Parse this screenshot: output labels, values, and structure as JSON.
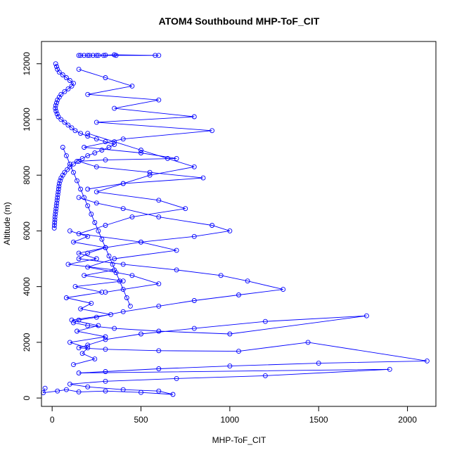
{
  "chart_data": {
    "type": "line",
    "title": "ATOM4 Southbound MHP-ToF_CIT",
    "xlabel": "MHP-ToF_CIT",
    "ylabel": "Altitude (m)",
    "xlim": [
      -60,
      2160
    ],
    "ylim": [
      -300,
      12800
    ],
    "xticks": [
      0,
      500,
      1000,
      1500,
      2000
    ],
    "yticks": [
      0,
      2000,
      4000,
      6000,
      8000,
      10000,
      12000
    ],
    "series_color": "#0000ff",
    "markers": "open-circle",
    "series": [
      {
        "x": [
          150,
          200,
          230,
          260,
          290,
          360,
          580,
          600,
          350,
          300,
          250,
          210,
          180,
          160
        ],
        "y": [
          12300,
          12300,
          12300,
          12300,
          12300,
          12300,
          12300,
          12300,
          12320,
          12310,
          12300,
          12300,
          12300,
          12300
        ]
      },
      {
        "x": [
          20,
          25,
          30,
          40,
          60,
          80,
          100,
          120,
          110,
          90,
          70,
          50,
          40,
          30,
          25,
          20,
          18,
          22,
          28,
          35,
          50,
          70,
          90,
          110,
          130,
          160,
          200,
          250,
          300,
          350,
          320,
          280,
          240,
          200,
          170,
          140,
          120,
          100,
          85,
          70,
          60,
          50,
          45,
          40,
          38,
          36,
          34,
          32,
          30,
          28,
          26,
          24,
          22,
          20,
          18,
          16,
          15,
          14,
          13,
          12
        ],
        "y": [
          12000,
          11900,
          11800,
          11700,
          11600,
          11500,
          11400,
          11300,
          11200,
          11100,
          11000,
          10900,
          10800,
          10700,
          10600,
          10500,
          10400,
          10300,
          10200,
          10100,
          10000,
          9900,
          9800,
          9700,
          9600,
          9500,
          9400,
          9300,
          9200,
          9100,
          9000,
          8900,
          8800,
          8700,
          8600,
          8500,
          8400,
          8300,
          8200,
          8100,
          8000,
          7900,
          7800,
          7700,
          7600,
          7500,
          7400,
          7300,
          7200,
          7100,
          7000,
          6900,
          6800,
          6700,
          6600,
          6500,
          6400,
          6300,
          6200,
          6100
        ]
      },
      {
        "x": [
          150,
          300,
          450,
          200,
          600,
          350,
          800,
          250,
          900,
          400,
          180,
          500,
          700,
          300,
          150,
          250,
          550,
          850,
          400,
          200
        ],
        "y": [
          11800,
          11500,
          11200,
          10900,
          10700,
          10400,
          10100,
          9900,
          9600,
          9300,
          9000,
          8800,
          8600,
          8550,
          8500,
          8300,
          8100,
          7900,
          7700,
          7500
        ]
      },
      {
        "x": [
          150,
          250,
          400,
          600,
          900,
          1000,
          800,
          500,
          300,
          200,
          150,
          400,
          700,
          950,
          1100,
          1300,
          1050,
          800,
          600,
          400,
          250,
          150,
          120,
          200,
          350,
          600,
          1000,
          1770,
          1200,
          800,
          500,
          300,
          200,
          150,
          300,
          600,
          1050,
          1440,
          2110,
          1500,
          1000,
          600,
          300,
          150,
          1900,
          1200,
          700,
          300,
          100,
          200,
          400,
          600,
          680,
          500,
          300,
          150,
          80,
          30,
          -50,
          -40
        ],
        "y": [
          7200,
          7000,
          6800,
          6500,
          6200,
          6000,
          5800,
          5600,
          5400,
          5200,
          5000,
          4800,
          4600,
          4400,
          4200,
          3900,
          3700,
          3500,
          3300,
          3100,
          2900,
          2800,
          2700,
          2600,
          2500,
          2400,
          2300,
          2950,
          2750,
          2500,
          2300,
          2100,
          1900,
          1800,
          1750,
          1700,
          1680,
          2000,
          1330,
          1250,
          1150,
          1050,
          950,
          900,
          1030,
          800,
          700,
          600,
          500,
          400,
          300,
          250,
          130,
          200,
          250,
          220,
          300,
          250,
          190,
          350
        ]
      },
      {
        "x": [
          100,
          200,
          120,
          300,
          150,
          250,
          90,
          350,
          180,
          400,
          130,
          280,
          80,
          220,
          160,
          330,
          110,
          260,
          140,
          300,
          100,
          200,
          170,
          240,
          120
        ],
        "y": [
          6000,
          5800,
          5600,
          5400,
          5200,
          5000,
          4800,
          4600,
          4400,
          4200,
          4000,
          3800,
          3600,
          3400,
          3200,
          3000,
          2800,
          2600,
          2400,
          2200,
          2000,
          1800,
          1600,
          1400,
          1200
        ]
      },
      {
        "x": [
          200,
          350,
          500,
          650,
          800,
          550,
          400,
          250,
          600,
          750,
          450,
          300,
          150,
          500,
          700,
          350,
          200,
          450,
          600,
          300
        ],
        "y": [
          9500,
          9200,
          8900,
          8600,
          8300,
          8000,
          7700,
          7400,
          7100,
          6800,
          6500,
          6200,
          5900,
          5600,
          5300,
          5000,
          4700,
          4400,
          4100,
          3800
        ]
      },
      {
        "x": [
          60,
          80,
          100,
          120,
          140,
          160,
          180,
          200,
          220,
          240,
          260,
          280,
          300,
          320,
          340,
          360,
          380,
          400,
          420,
          440
        ],
        "y": [
          9000,
          8700,
          8400,
          8100,
          7800,
          7500,
          7200,
          6900,
          6600,
          6300,
          6000,
          5700,
          5400,
          5100,
          4800,
          4500,
          4200,
          3900,
          3600,
          3300
        ]
      }
    ]
  }
}
